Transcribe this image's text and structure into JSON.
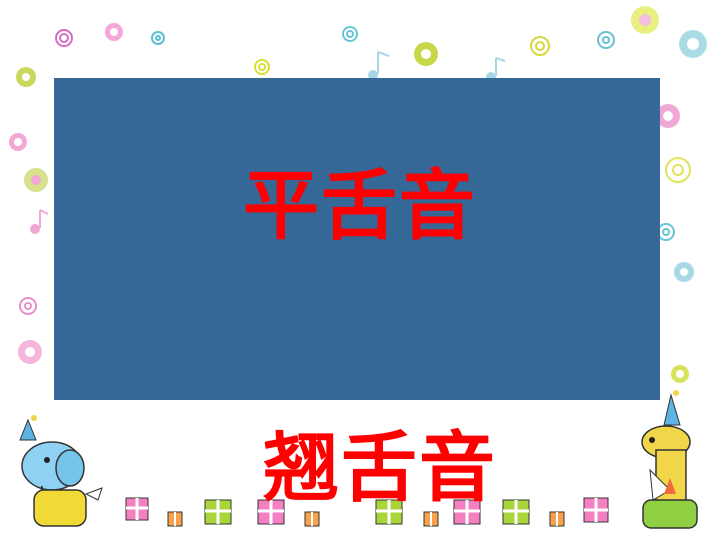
{
  "slide": {
    "panel_title": "平舌音",
    "bottom_title": "翘舌音"
  },
  "colors": {
    "panel": "#356797",
    "title": "#ff0000"
  },
  "decorations": {
    "left_character": "blue-elephant-party-hat-illustration",
    "right_character": "giraffe-party-hat-illustration",
    "border_pattern": "flowers-spirals-music-notes-border",
    "gift_row": "wrapped-gift-boxes-row"
  }
}
